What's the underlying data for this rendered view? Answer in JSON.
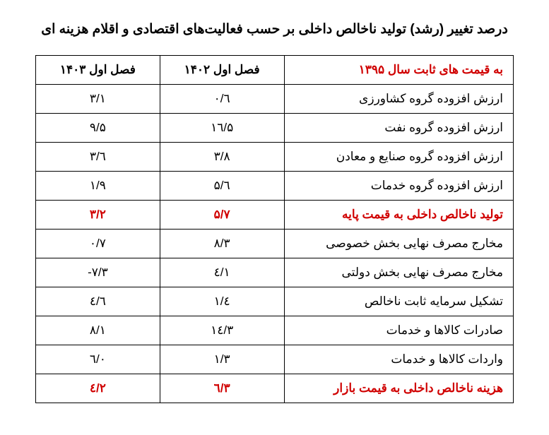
{
  "title": "درصد تغییر (رشد) تولید ناخالص داخلی بر حسب فعالیت‌های اقتصادی و اقلام هزینه ای",
  "table": {
    "type": "table",
    "header": {
      "right": "به قیمت های ثابت سال ۱۳۹۵",
      "col1": "فصل اول ۱۴۰۲",
      "col2": "فصل اول ۱۴۰۳"
    },
    "rows": [
      {
        "label": "ارزش افزوده گروه کشاورزی",
        "c1": "۰/٦",
        "c2": "۳/۱",
        "highlight": false
      },
      {
        "label": "ارزش افزوده گروه نفت",
        "c1": "۱٦/۵",
        "c2": "۹/۵",
        "highlight": false
      },
      {
        "label": "ارزش افزوده گروه صنایع و معادن",
        "c1": "۳/۸",
        "c2": "۳/٦",
        "highlight": false
      },
      {
        "label": "ارزش افزوده گروه خدمات",
        "c1": "۵/٦",
        "c2": "۱/۹",
        "highlight": false
      },
      {
        "label": "تولید ناخالص داخلی به قیمت پایه",
        "c1": "۵/۷",
        "c2": "۳/۲",
        "highlight": true
      },
      {
        "label": "مخارج مصرف نهایی بخش خصوصی",
        "c1": "۸/۳",
        "c2": "۰/۷",
        "highlight": false
      },
      {
        "label": "مخارج مصرف نهایی بخش دولتی",
        "c1": "٤/۱",
        "c2": "-۷/۳",
        "highlight": false
      },
      {
        "label": "تشکیل سرمایه ثابت ناخالص",
        "c1": "۱/٤",
        "c2": "٤/٦",
        "highlight": false
      },
      {
        "label": "صادرات کالاها و خدمات",
        "c1": "۱٤/۳",
        "c2": "۸/۱",
        "highlight": false
      },
      {
        "label": "واردات کالاها و خدمات",
        "c1": "۱/۳",
        "c2": "٦/۰",
        "highlight": false
      },
      {
        "label": "هزینه ناخالص داخلی به قیمت بازار",
        "c1": "٦/۳",
        "c2": "٤/۲",
        "highlight": true
      }
    ],
    "colors": {
      "highlight": "#d00000",
      "text": "#000000",
      "border": "#000000",
      "background": "#ffffff"
    },
    "font_size_title": 19,
    "font_size_cell": 17
  }
}
